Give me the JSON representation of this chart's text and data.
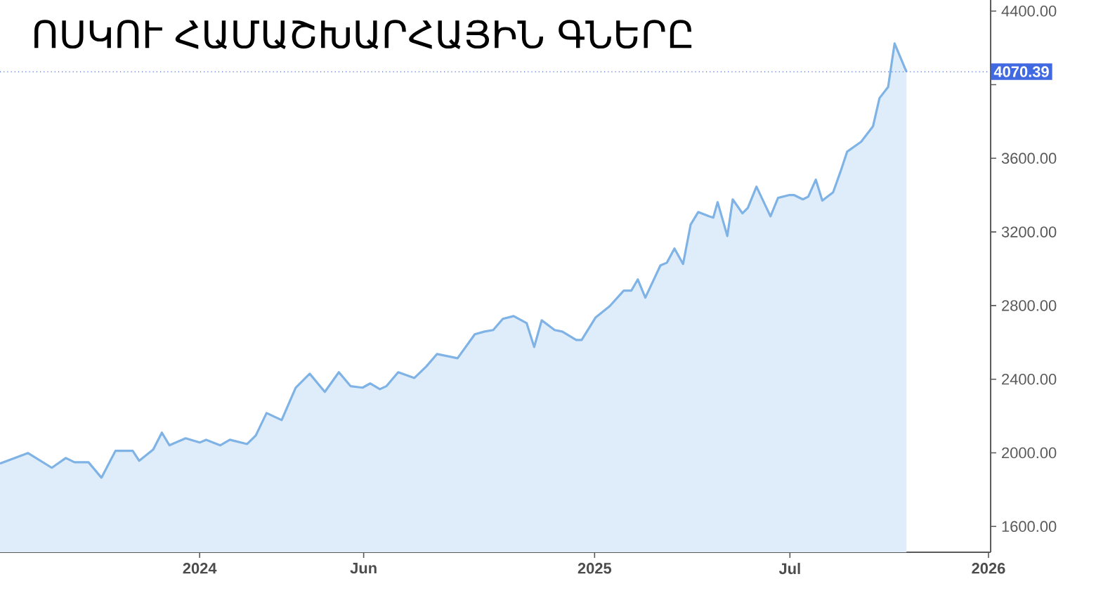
{
  "chart_data": {
    "type": "area",
    "title": "ՈՍԿՈՒ ՀԱՄԱՇԽԱՐՀԱՅԻՆ ԳՆԵՐԸ",
    "color": "#7fb3e6",
    "x": [
      "2023-06-30",
      "2023-07-26",
      "2023-08-17",
      "2023-08-30",
      "2023-09-07",
      "2023-09-20",
      "2023-10-02",
      "2023-10-15",
      "2023-10-31",
      "2023-11-06",
      "2023-11-19",
      "2023-11-27",
      "2023-12-04",
      "2023-12-19",
      "2024-01-01",
      "2024-01-07",
      "2024-01-20",
      "2024-01-29",
      "2024-02-14",
      "2024-02-22",
      "2024-03-03",
      "2024-03-17",
      "2024-03-30",
      "2024-04-12",
      "2024-04-26",
      "2024-05-09",
      "2024-05-20",
      "2024-05-31",
      "2024-06-07",
      "2024-06-16",
      "2024-06-22",
      "2024-07-03",
      "2024-07-18",
      "2024-07-29",
      "2024-08-08",
      "2024-08-27",
      "2024-09-12",
      "2024-09-21",
      "2024-09-29",
      "2024-10-08",
      "2024-10-18",
      "2024-10-30",
      "2024-11-06",
      "2024-11-13",
      "2024-11-25",
      "2024-12-02",
      "2024-12-15",
      "2024-12-20",
      "2025-01-02",
      "2025-01-15",
      "2025-01-28",
      "2025-02-04",
      "2025-02-10",
      "2025-02-17",
      "2025-03-03",
      "2025-03-09",
      "2025-03-16",
      "2025-03-24",
      "2025-03-31",
      "2025-04-07",
      "2025-04-17",
      "2025-04-21",
      "2025-04-25",
      "2025-05-04",
      "2025-05-09",
      "2025-05-18",
      "2025-05-23",
      "2025-05-31",
      "2025-06-13",
      "2025-06-20",
      "2025-06-30",
      "2025-07-05",
      "2025-07-13",
      "2025-07-18",
      "2025-07-25",
      "2025-07-31",
      "2025-08-10",
      "2025-08-17",
      "2025-08-23",
      "2025-09-05",
      "2025-09-16",
      "2025-09-22",
      "2025-09-30",
      "2025-10-06",
      "2025-10-17"
    ],
    "values": [
      1942,
      1999,
      1919,
      1972,
      1949,
      1949,
      1865,
      2011,
      2011,
      1957,
      2018,
      2110,
      2041,
      2079,
      2056,
      2071,
      2041,
      2071,
      2048,
      2094,
      2216,
      2178,
      2354,
      2430,
      2331,
      2438,
      2362,
      2354,
      2377,
      2346,
      2362,
      2438,
      2407,
      2469,
      2537,
      2514,
      2644,
      2659,
      2667,
      2728,
      2743,
      2705,
      2575,
      2720,
      2667,
      2659,
      2613,
      2613,
      2736,
      2797,
      2881,
      2881,
      2942,
      2843,
      3018,
      3033,
      3110,
      3026,
      3240,
      3308,
      3285,
      3278,
      3362,
      3178,
      3377,
      3301,
      3331,
      3446,
      3285,
      3385,
      3400,
      3400,
      3377,
      3392,
      3484,
      3370,
      3415,
      3530,
      3636,
      3690,
      3774,
      3927,
      3988,
      4224,
      4070.39
    ],
    "xlim": [
      "2023-06-30",
      "2026-01-03"
    ],
    "xticks": [
      {
        "value": "2024-01-01",
        "label": "2024"
      },
      {
        "value": "2024-06-01",
        "label": "Jun"
      },
      {
        "value": "2025-01-01",
        "label": "2025"
      },
      {
        "value": "2025-07-01",
        "label": "Jul"
      },
      {
        "value": "2026-01-01",
        "label": "2026"
      }
    ],
    "ylim": [
      1460,
      4460
    ],
    "yticks": [
      {
        "value": 1600,
        "label": "1600.00"
      },
      {
        "value": 2000,
        "label": "2000.00"
      },
      {
        "value": 2400,
        "label": "2400.00"
      },
      {
        "value": 2800,
        "label": "2800.00"
      },
      {
        "value": 3200,
        "label": "3200.00"
      },
      {
        "value": 3600,
        "label": "3600.00"
      },
      {
        "value": 4000,
        "label": null
      },
      {
        "value": 4400,
        "label": "4400.00"
      }
    ],
    "ref_lines": [
      {
        "axis": "y",
        "value": 4070.39,
        "label": "4070.39",
        "color": "#4169e1",
        "line_style": "dotted"
      }
    ]
  }
}
